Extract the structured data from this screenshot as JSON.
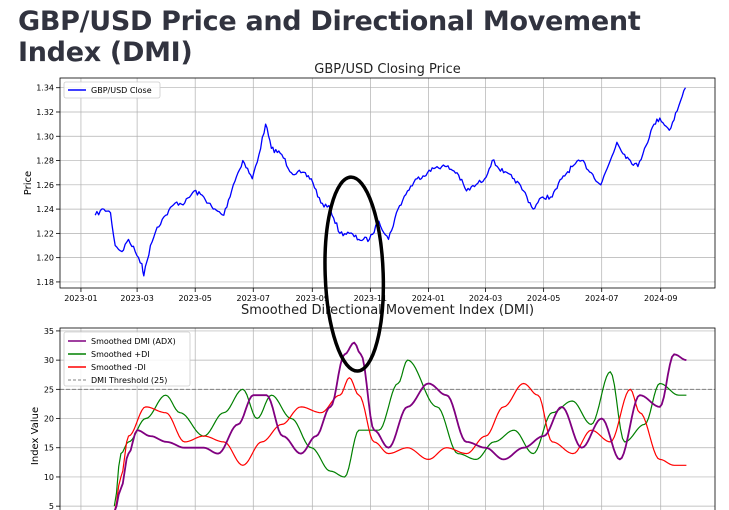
{
  "page": {
    "title": "GBP/USD Price and Directional Movement Index (DMI)"
  },
  "colors": {
    "price": "#0000ff",
    "adx": "#800080",
    "plus_di": "#008000",
    "minus_di": "#ff0000",
    "threshold": "#808080",
    "annotation": "#000000",
    "grid": "#b0b0b0"
  },
  "chart_data": [
    {
      "type": "line",
      "title": "GBP/USD Closing Price",
      "xlabel": "",
      "ylabel": "Price",
      "x_ticks": [
        "2023-01",
        "2023-03",
        "2023-05",
        "2023-07",
        "2023-09",
        "2023-11",
        "2024-01",
        "2024-03",
        "2024-05",
        "2024-07",
        "2024-09"
      ],
      "y_ticks": [
        "1.18",
        "1.20",
        "1.22",
        "1.24",
        "1.26",
        "1.28",
        "1.30",
        "1.32",
        "1.34"
      ],
      "xlim": [
        "2022-12-10",
        "2024-10-28"
      ],
      "ylim": [
        1.175,
        1.348
      ],
      "grid": true,
      "legend": "upper-left",
      "series": [
        {
          "name": "GBP/USD Close",
          "x": [
            "2023-01-16",
            "2023-01-25",
            "2023-02-01",
            "2023-02-06",
            "2023-02-13",
            "2023-02-20",
            "2023-02-27",
            "2023-03-06",
            "2023-03-08",
            "2023-03-15",
            "2023-03-22",
            "2023-03-31",
            "2023-04-10",
            "2023-04-20",
            "2023-04-30",
            "2023-05-10",
            "2023-05-20",
            "2023-05-31",
            "2023-06-10",
            "2023-06-20",
            "2023-06-30",
            "2023-07-07",
            "2023-07-14",
            "2023-07-20",
            "2023-07-31",
            "2023-08-10",
            "2023-08-20",
            "2023-08-31",
            "2023-09-10",
            "2023-09-20",
            "2023-09-30",
            "2023-10-10",
            "2023-10-20",
            "2023-10-31",
            "2023-11-10",
            "2023-11-20",
            "2023-11-30",
            "2023-12-10",
            "2023-12-20",
            "2023-12-31",
            "2024-01-10",
            "2024-01-20",
            "2024-01-31",
            "2024-02-10",
            "2024-02-20",
            "2024-02-29",
            "2024-03-08",
            "2024-03-20",
            "2024-03-31",
            "2024-04-10",
            "2024-04-20",
            "2024-04-30",
            "2024-05-10",
            "2024-05-20",
            "2024-05-31",
            "2024-06-10",
            "2024-06-20",
            "2024-06-30",
            "2024-07-10",
            "2024-07-17",
            "2024-07-25",
            "2024-07-31",
            "2024-08-08",
            "2024-08-15",
            "2024-08-25",
            "2024-08-31",
            "2024-09-10",
            "2024-09-20",
            "2024-09-27"
          ],
          "values": [
            1.235,
            1.24,
            1.237,
            1.21,
            1.205,
            1.215,
            1.205,
            1.195,
            1.185,
            1.21,
            1.225,
            1.235,
            1.245,
            1.245,
            1.255,
            1.25,
            1.24,
            1.235,
            1.26,
            1.28,
            1.265,
            1.285,
            1.31,
            1.29,
            1.285,
            1.27,
            1.27,
            1.265,
            1.245,
            1.24,
            1.22,
            1.22,
            1.215,
            1.215,
            1.23,
            1.215,
            1.24,
            1.255,
            1.265,
            1.27,
            1.275,
            1.275,
            1.27,
            1.255,
            1.26,
            1.265,
            1.28,
            1.27,
            1.265,
            1.255,
            1.24,
            1.25,
            1.25,
            1.265,
            1.275,
            1.28,
            1.27,
            1.26,
            1.28,
            1.295,
            1.285,
            1.28,
            1.275,
            1.29,
            1.31,
            1.315,
            1.305,
            1.325,
            1.34
          ]
        }
      ]
    },
    {
      "type": "line",
      "title": "Smoothed Directional Movement Index (DMI)",
      "xlabel": "",
      "ylabel": "Index Value",
      "y_ticks": [
        "5",
        "10",
        "15",
        "20",
        "25",
        "30",
        "35"
      ],
      "xlim": [
        "2022-12-10",
        "2024-10-28"
      ],
      "ylim": [
        4,
        35.5
      ],
      "grid": true,
      "legend": "upper-left",
      "threshold": {
        "name": "DMI Threshold (25)",
        "value": 25
      },
      "series": [
        {
          "name": "Smoothed DMI (ADX)",
          "x": [
            "2023-02-05",
            "2023-02-12",
            "2023-02-20",
            "2023-03-01",
            "2023-03-15",
            "2023-04-01",
            "2023-04-20",
            "2023-05-10",
            "2023-05-25",
            "2023-06-15",
            "2023-07-01",
            "2023-07-15",
            "2023-08-01",
            "2023-08-20",
            "2023-09-05",
            "2023-09-20",
            "2023-10-05",
            "2023-10-15",
            "2023-10-22",
            "2023-11-05",
            "2023-11-20",
            "2023-12-10",
            "2024-01-01",
            "2024-01-20",
            "2024-02-10",
            "2024-03-01",
            "2024-03-20",
            "2024-04-10",
            "2024-05-01",
            "2024-05-20",
            "2024-06-10",
            "2024-07-01",
            "2024-07-20",
            "2024-08-10",
            "2024-08-31",
            "2024-09-15",
            "2024-09-28"
          ],
          "values": [
            4,
            8,
            14,
            18,
            17,
            16,
            15,
            15,
            14,
            19,
            24,
            24,
            17,
            14,
            17,
            22,
            31,
            33,
            31,
            18,
            15,
            22,
            26,
            24,
            16,
            15,
            13,
            15,
            17,
            22,
            15,
            20,
            13,
            24,
            22,
            31,
            30
          ]
        },
        {
          "name": "Smoothed +DI",
          "x": [
            "2023-02-05",
            "2023-02-12",
            "2023-02-20",
            "2023-03-10",
            "2023-03-31",
            "2023-04-15",
            "2023-05-10",
            "2023-05-31",
            "2023-06-20",
            "2023-07-05",
            "2023-07-20",
            "2023-08-10",
            "2023-08-31",
            "2023-09-20",
            "2023-10-05",
            "2023-10-20",
            "2023-11-10",
            "2023-11-30",
            "2023-12-10",
            "2024-01-10",
            "2024-02-01",
            "2024-02-20",
            "2024-03-10",
            "2024-03-31",
            "2024-04-20",
            "2024-05-10",
            "2024-05-31",
            "2024-06-20",
            "2024-07-10",
            "2024-07-25",
            "2024-08-15",
            "2024-08-31",
            "2024-09-20",
            "2024-09-28"
          ],
          "values": [
            5,
            14,
            16,
            20,
            24,
            21,
            17,
            21,
            25,
            20,
            24,
            20,
            15,
            11,
            10,
            18,
            18,
            26,
            30,
            22,
            14,
            13,
            16,
            18,
            14,
            21,
            23,
            19,
            28,
            16,
            19,
            26,
            24,
            24
          ]
        },
        {
          "name": "Smoothed -DI",
          "x": [
            "2023-02-05",
            "2023-02-12",
            "2023-02-20",
            "2023-03-10",
            "2023-03-31",
            "2023-04-20",
            "2023-05-10",
            "2023-05-31",
            "2023-06-20",
            "2023-07-10",
            "2023-07-31",
            "2023-08-20",
            "2023-09-10",
            "2023-09-30",
            "2023-10-10",
            "2023-10-20",
            "2023-11-05",
            "2023-11-20",
            "2023-12-10",
            "2024-01-01",
            "2024-01-20",
            "2024-02-10",
            "2024-03-01",
            "2024-03-20",
            "2024-04-10",
            "2024-04-25",
            "2024-05-10",
            "2024-06-01",
            "2024-06-20",
            "2024-07-10",
            "2024-07-31",
            "2024-08-10",
            "2024-08-31",
            "2024-09-15",
            "2024-09-28"
          ],
          "values": [
            4,
            10,
            17,
            22,
            21,
            16,
            17,
            16,
            12,
            16,
            19,
            22,
            21,
            24,
            27,
            24,
            16,
            14,
            15,
            13,
            15,
            14,
            17,
            22,
            26,
            24,
            16,
            14,
            18,
            16,
            25,
            21,
            13,
            12,
            12
          ]
        }
      ],
      "annotations": [
        {
          "type": "ellipse",
          "center_x": "2023-10-15",
          "center_y": 1.24
        }
      ]
    }
  ]
}
